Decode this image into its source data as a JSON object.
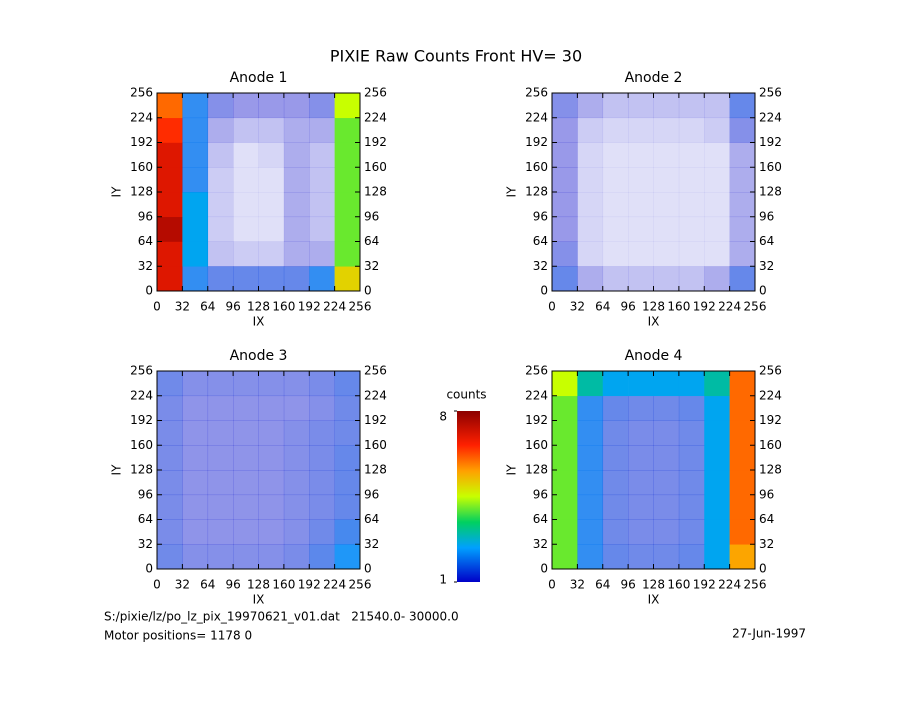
{
  "title": "PIXIE Raw Counts Front HV= 30",
  "chart_data": [
    {
      "type": "heatmap",
      "title": "Anode 1",
      "xlabel": "IX",
      "ylabel": "IY",
      "xlim": [
        0,
        256
      ],
      "ylim": [
        0,
        256
      ],
      "xticks": [
        0,
        32,
        64,
        96,
        128,
        160,
        192,
        224,
        256
      ],
      "yticks": [
        0,
        32,
        64,
        96,
        128,
        160,
        192,
        224,
        256
      ],
      "values": [
        [
          7,
          2,
          1.5,
          1.5,
          1.5,
          1.5,
          2,
          5
        ],
        [
          7,
          2.5,
          0.6,
          0.5,
          0.5,
          0.8,
          0.8,
          4
        ],
        [
          7.5,
          2.5,
          0.5,
          0.3,
          0.3,
          0.8,
          0.6,
          4
        ],
        [
          7,
          2.5,
          0.5,
          0.3,
          0.3,
          0.8,
          0.6,
          4
        ],
        [
          7,
          2,
          0.5,
          0.3,
          0.3,
          0.8,
          0.6,
          4
        ],
        [
          7,
          2,
          0.6,
          0.3,
          0.4,
          0.8,
          0.6,
          4
        ],
        [
          6.5,
          2,
          0.8,
          0.6,
          0.6,
          0.8,
          0.8,
          4
        ],
        [
          6,
          2,
          1.2,
          1,
          1,
          1,
          1.2,
          4.5
        ]
      ]
    },
    {
      "type": "heatmap",
      "title": "Anode 2",
      "xlabel": "IX",
      "ylabel": "IY",
      "xlim": [
        0,
        256
      ],
      "ylim": [
        0,
        256
      ],
      "xticks": [
        0,
        32,
        64,
        96,
        128,
        160,
        192,
        224,
        256
      ],
      "yticks": [
        0,
        32,
        64,
        96,
        128,
        160,
        192,
        224,
        256
      ],
      "values": [
        [
          1.5,
          0.8,
          0.6,
          0.6,
          0.6,
          0.6,
          0.8,
          1.5
        ],
        [
          1.2,
          0.4,
          0.3,
          0.3,
          0.3,
          0.3,
          0.3,
          0.8
        ],
        [
          1,
          0.4,
          0.3,
          0.3,
          0.3,
          0.3,
          0.3,
          0.8
        ],
        [
          1,
          0.4,
          0.3,
          0.3,
          0.3,
          0.3,
          0.3,
          0.8
        ],
        [
          1,
          0.4,
          0.3,
          0.3,
          0.3,
          0.3,
          0.3,
          0.8
        ],
        [
          1,
          0.4,
          0.3,
          0.3,
          0.3,
          0.3,
          0.3,
          0.8
        ],
        [
          1,
          0.5,
          0.4,
          0.4,
          0.4,
          0.4,
          0.5,
          1.2
        ],
        [
          1.2,
          0.8,
          0.6,
          0.6,
          0.6,
          0.6,
          0.6,
          1.5
        ]
      ]
    },
    {
      "type": "heatmap",
      "title": "Anode 3",
      "xlabel": "IX",
      "ylabel": "IY",
      "xlim": [
        0,
        256
      ],
      "ylim": [
        0,
        256
      ],
      "xticks": [
        0,
        32,
        64,
        96,
        128,
        160,
        192,
        224,
        256
      ],
      "yticks": [
        0,
        32,
        64,
        96,
        128,
        160,
        192,
        224,
        256
      ],
      "values": [
        [
          1.4,
          1.2,
          1.2,
          1.2,
          1.2,
          1.3,
          1.6,
          2.2
        ],
        [
          1.3,
          1.1,
          1.1,
          1.1,
          1.1,
          1.2,
          1.4,
          1.8
        ],
        [
          1.3,
          1.1,
          1.1,
          1.1,
          1.1,
          1.2,
          1.3,
          1.5
        ],
        [
          1.3,
          1.1,
          1.1,
          1.1,
          1.1,
          1.2,
          1.3,
          1.5
        ],
        [
          1.3,
          1.1,
          1.1,
          1.1,
          1.1,
          1.2,
          1.3,
          1.5
        ],
        [
          1.3,
          1.1,
          1.1,
          1.1,
          1.1,
          1.2,
          1.3,
          1.4
        ],
        [
          1.3,
          1.1,
          1.1,
          1.1,
          1.1,
          1.1,
          1.2,
          1.4
        ],
        [
          1.4,
          1.2,
          1.2,
          1.2,
          1.2,
          1.2,
          1.3,
          1.5
        ]
      ]
    },
    {
      "type": "heatmap",
      "title": "Anode 4",
      "xlabel": "IX",
      "ylabel": "IY",
      "xlim": [
        0,
        256
      ],
      "ylim": [
        0,
        256
      ],
      "xticks": [
        0,
        32,
        64,
        96,
        128,
        160,
        192,
        224,
        256
      ],
      "yticks": [
        0,
        32,
        64,
        96,
        128,
        160,
        192,
        224,
        256
      ],
      "values": [
        [
          4,
          2,
          1.5,
          1.4,
          1.4,
          1.5,
          2.5,
          5.5
        ],
        [
          4,
          2,
          1.4,
          1.3,
          1.3,
          1.4,
          2.5,
          6
        ],
        [
          4,
          2,
          1.4,
          1.3,
          1.3,
          1.4,
          2.5,
          6
        ],
        [
          4,
          2,
          1.4,
          1.3,
          1.3,
          1.4,
          2.5,
          6
        ],
        [
          4,
          2,
          1.4,
          1.3,
          1.3,
          1.4,
          2.5,
          6
        ],
        [
          4,
          2,
          1.4,
          1.3,
          1.3,
          1.4,
          2.5,
          6
        ],
        [
          4,
          2,
          1.5,
          1.4,
          1.4,
          1.5,
          2.5,
          6
        ],
        [
          4.5,
          3,
          2.5,
          2.5,
          2.5,
          2.5,
          3,
          6
        ]
      ]
    }
  ],
  "colorbar": {
    "label": "counts",
    "clim": [
      1,
      8
    ],
    "ticks": [
      1,
      8
    ]
  },
  "footer": {
    "file": "S:/pixie/lz/po_lz_pix_19970621_v01.dat   21540.0- 30000.0",
    "motor": "Motor positions= 1178 0",
    "date": "27-Jun-1997"
  }
}
